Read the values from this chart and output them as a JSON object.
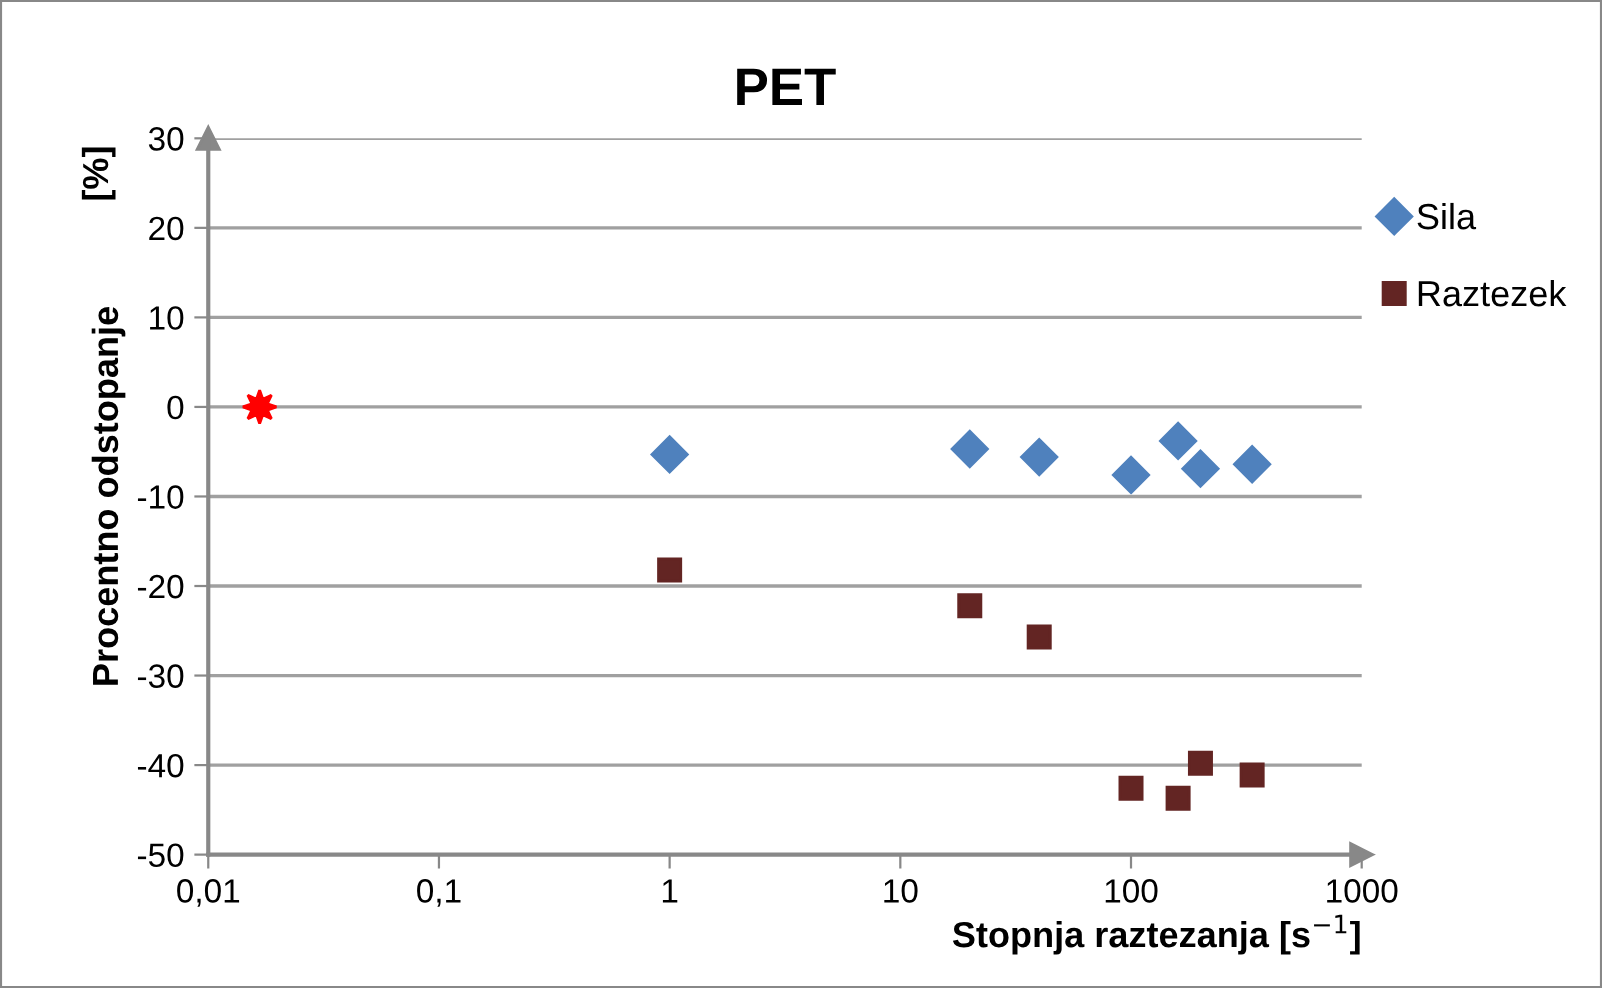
{
  "chart_data": {
    "type": "scatter",
    "title": "PET",
    "xlabel": "Stopnja raztezanja [s$^{−1}$]",
    "ylabel": "Procentno odstopanje",
    "annotations": [
      "[%]"
    ],
    "log": "x",
    "xlim": [
      0.01,
      1000
    ],
    "xticks": [
      {
        "value": 0.01,
        "label": "0,01"
      },
      {
        "value": 0.1,
        "label": "0,1"
      },
      1,
      10,
      100,
      1000
    ],
    "ylim": [
      -50,
      30
    ],
    "yticks": [
      -50,
      -40,
      -30,
      -20,
      -10,
      0,
      10,
      20,
      30
    ],
    "grid": "y",
    "legend": "top right",
    "series": [
      {
        "name": "Sila",
        "color": "#4f81bd",
        "marker": "diamond",
        "x": [
          1,
          20,
          40,
          100,
          160,
          200,
          335
        ],
        "values": [
          -5.3,
          -4.7,
          -5.6,
          -7.6,
          -3.8,
          -6.9,
          -6.4
        ]
      },
      {
        "name": "Raztezek",
        "color": "#632523",
        "marker": "square",
        "x": [
          1,
          20,
          40,
          100,
          160,
          200,
          335
        ],
        "values": [
          -18.2,
          -22.2,
          -25.7,
          -42.6,
          -43.7,
          -39.8,
          -41.1
        ]
      },
      {
        "color": "#ff0000",
        "marker": "star",
        "x": [
          0.0167
        ],
        "values": [
          0
        ]
      }
    ]
  }
}
